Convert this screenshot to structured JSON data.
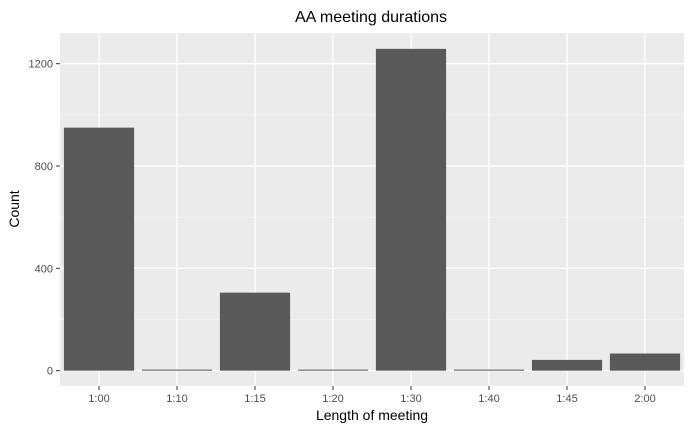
{
  "chart_data": {
    "type": "bar",
    "title": "AA meeting durations",
    "xlabel": "Length of meeting",
    "ylabel": "Count",
    "categories": [
      "1:00",
      "1:10",
      "1:15",
      "1:20",
      "1:30",
      "1:40",
      "1:45",
      "2:00"
    ],
    "values": [
      950,
      4,
      305,
      4,
      1258,
      4,
      42,
      67
    ],
    "yticks": [
      "0",
      "400",
      "800",
      "1200"
    ],
    "ylim": [
      -60,
      1320
    ],
    "grid": true,
    "legend": "none",
    "colors": {
      "bar": "#595959",
      "panel": "#ebebeb",
      "grid_major": "#ffffff",
      "grid_minor": "#f5f5f5"
    }
  }
}
